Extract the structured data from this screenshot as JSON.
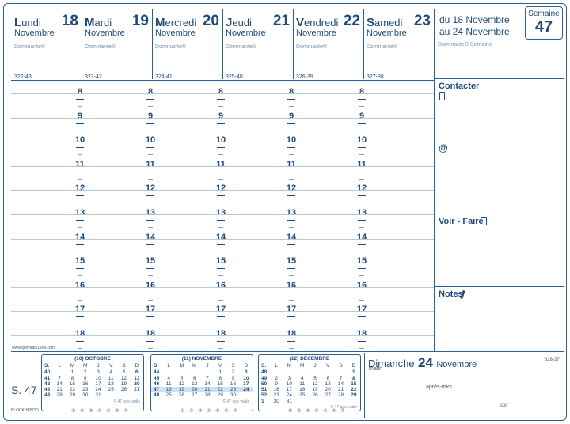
{
  "days": [
    {
      "prefix": "L",
      "rest": "undi",
      "month": "Novembre",
      "number": "18",
      "dominante": "Dominante®",
      "code": "322-43"
    },
    {
      "prefix": "M",
      "rest": "ardi",
      "month": "Novembre",
      "number": "19",
      "dominante": "Dominante®",
      "code": "323-42"
    },
    {
      "prefix": "M",
      "rest": "ercredi",
      "month": "Novembre",
      "number": "20",
      "dominante": "Dominante®",
      "code": "324-41"
    },
    {
      "prefix": "J",
      "rest": "eudi",
      "month": "Novembre",
      "number": "21",
      "dominante": "Dominante®",
      "code": "325-40"
    },
    {
      "prefix": "V",
      "rest": "endredi",
      "month": "Novembre",
      "number": "22",
      "dominante": "Dominante®",
      "code": "326-39"
    },
    {
      "prefix": "S",
      "rest": "amedi",
      "month": "Novembre",
      "number": "23",
      "dominante": "Dominante®",
      "code": "327-38"
    }
  ],
  "hours": [
    "8",
    "9",
    "10",
    "11",
    "12",
    "13",
    "14",
    "15",
    "16",
    "17",
    "18"
  ],
  "week": {
    "range_line1": "du 18 Novembre",
    "range_line2": "au 24 Novembre",
    "label": "Semaine",
    "number": "47",
    "dominante": "Dominante® Semaine"
  },
  "sections": {
    "contacter": "Contacter",
    "at": "@",
    "voir_faire": "Voir - Faire",
    "notes": "Notes"
  },
  "sunday": {
    "name": "Dimanche",
    "number": "24",
    "month": "Novembre",
    "code": "328-37",
    "matin": "matin",
    "apres_midi": "après-midi",
    "soir": "soir"
  },
  "footer": {
    "website": "www.quovadis1954.com",
    "week_short": "S. 47",
    "brand": "BLOCKHEBDO"
  },
  "mini_calendars": [
    {
      "title": "(10) OCTOBRE",
      "head": [
        "S.",
        "L",
        "M",
        "M",
        "J",
        "V",
        "S",
        "D"
      ],
      "rows": [
        [
          "40",
          "",
          "1",
          "2",
          "3",
          "4",
          "5",
          "6"
        ],
        [
          "41",
          "7",
          "8",
          "9",
          "10",
          "11",
          "12",
          "13"
        ],
        [
          "42",
          "14",
          "15",
          "16",
          "17",
          "18",
          "19",
          "20"
        ],
        [
          "43",
          "21",
          "22",
          "23",
          "24",
          "25",
          "26",
          "27"
        ],
        [
          "44",
          "28",
          "29",
          "30",
          "31",
          "",
          "",
          ""
        ]
      ],
      "note": "© 47 quo vadis"
    },
    {
      "title": "(11) NOVEMBRE",
      "head": [
        "S.",
        "L",
        "M",
        "M",
        "J",
        "V",
        "S",
        "D"
      ],
      "rows": [
        [
          "44",
          "",
          "",
          "",
          "",
          "1",
          "2",
          "3"
        ],
        [
          "45",
          "4",
          "5",
          "6",
          "7",
          "8",
          "9",
          "10"
        ],
        [
          "46",
          "11",
          "12",
          "13",
          "14",
          "15",
          "16",
          "17"
        ],
        [
          "47",
          "18",
          "19",
          "20",
          "21",
          "22",
          "23",
          "24"
        ],
        [
          "48",
          "25",
          "26",
          "27",
          "28",
          "29",
          "30",
          ""
        ]
      ],
      "note": "© 47 quo vadis"
    },
    {
      "title": "(12) DÉCEMBRE",
      "head": [
        "S.",
        "L",
        "M",
        "M",
        "J",
        "V",
        "S",
        "D"
      ],
      "rows": [
        [
          "48",
          "",
          "",
          "",
          "",
          "",
          "",
          "1"
        ],
        [
          "49",
          "2",
          "3",
          "4",
          "5",
          "6",
          "7",
          "8"
        ],
        [
          "50",
          "9",
          "10",
          "11",
          "12",
          "13",
          "14",
          "15"
        ],
        [
          "51",
          "16",
          "17",
          "18",
          "19",
          "20",
          "21",
          "22"
        ],
        [
          "52",
          "23",
          "24",
          "25",
          "26",
          "27",
          "28",
          "29"
        ],
        [
          "1",
          "30",
          "31",
          "",
          "",
          "",
          "",
          ""
        ]
      ],
      "note": "© 47 quo vadis"
    }
  ],
  "circle_row": "① ② ③ ④ ⑤ ⑥ ⑦",
  "colors": {
    "ink": "#1f4a7a",
    "rule": "#2c5f93",
    "highlight": "#cfe0f2"
  }
}
